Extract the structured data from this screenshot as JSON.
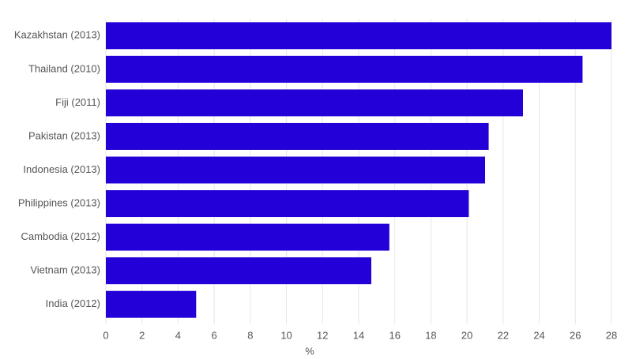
{
  "chart_data": {
    "type": "bar",
    "orientation": "horizontal",
    "x_label": "%",
    "categories": [
      "Kazakhstan (2013)",
      "Thailand (2010)",
      "Fiji (2011)",
      "Pakistan (2013)",
      "Indonesia (2013)",
      "Philippines (2013)",
      "Cambodia (2012)",
      "Vietnam (2013)",
      "India (2012)"
    ],
    "values": [
      28.0,
      26.4,
      23.1,
      21.2,
      21.0,
      20.1,
      15.7,
      14.7,
      5.0
    ],
    "color": "#2400d8",
    "xlim": [
      0,
      28
    ],
    "xticks": [
      0,
      2,
      4,
      6,
      8,
      10,
      12,
      14,
      16,
      18,
      20,
      22,
      24,
      26,
      28
    ],
    "grid": true
  }
}
